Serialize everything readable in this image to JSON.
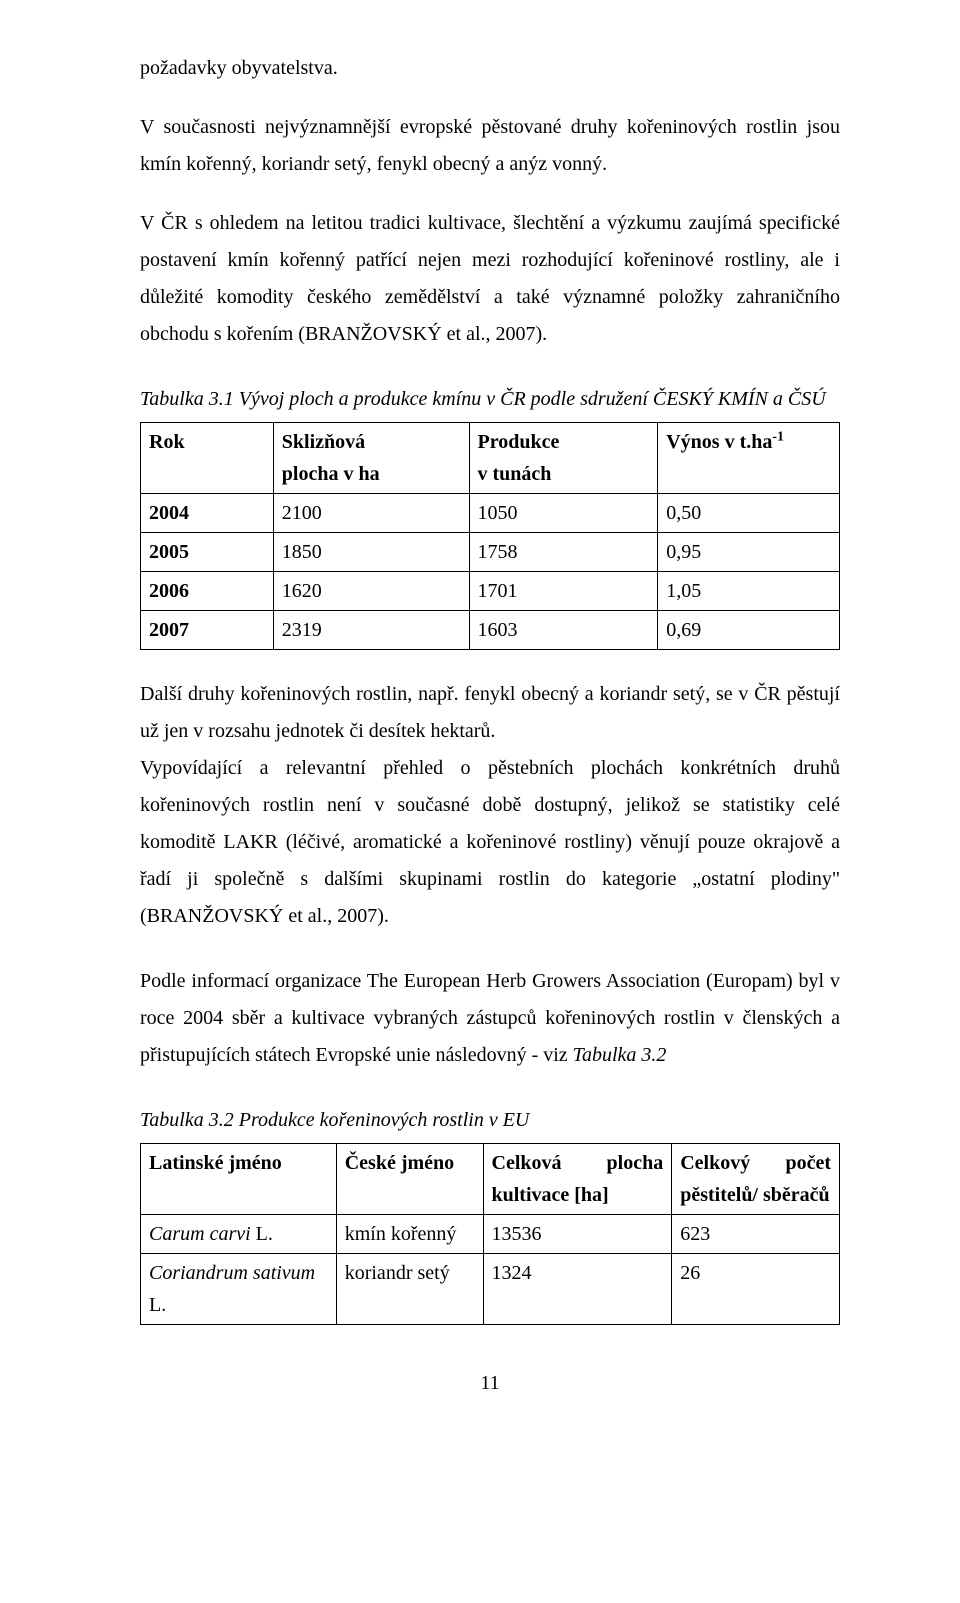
{
  "para1": "požadavky obyvatelstva.",
  "para2": "V současnosti nejvýznamnější evropské pěstované druhy kořeninových rostlin jsou kmín kořenný, koriandr setý, fenykl obecný a anýz vonný.",
  "para3": "V ČR s ohledem na letitou tradici kultivace, šlechtění a výzkumu zaujímá specifické postavení kmín kořenný patřící nejen mezi rozhodující kořeninové rostliny, ale i důležité komodity českého zemědělství a také významné položky zahraničního obchodu s kořením (BRANŽOVSKÝ et al., 2007).",
  "table1": {
    "caption": "Tabulka 3.1 Vývoj ploch a produkce kmínu v ČR podle sdružení ČESKÝ KMÍN a ČSÚ",
    "columns": {
      "c0": "Rok",
      "c1_l1": "Sklizňová",
      "c1_l2": "plocha v ha",
      "c2_l1": "Produkce",
      "c2_l2": "v tunách",
      "c3_pre": "Výnos v t.ha",
      "c3_sup": "-1"
    },
    "rows": [
      {
        "c0": "2004",
        "c1": "2100",
        "c2": "1050",
        "c3": "0,50"
      },
      {
        "c0": "2005",
        "c1": "1850",
        "c2": "1758",
        "c3": "0,95"
      },
      {
        "c0": "2006",
        "c1": "1620",
        "c2": "1701",
        "c3": "1,05"
      },
      {
        "c0": "2007",
        "c1": "2319",
        "c2": "1603",
        "c3": "0,69"
      }
    ]
  },
  "para4": "Další druhy kořeninových rostlin, např. fenykl obecný a koriandr setý, se v ČR pěstují už jen v rozsahu jednotek či desítek hektarů.",
  "para5": "Vypovídající a relevantní přehled o pěstebních plochách konkrétních druhů kořeninových rostlin není v současné době dostupný, jelikož se statistiky celé komoditě LAKR (léčivé, aromatické a kořeninové rostliny) věnují pouze okrajově a řadí ji společně s dalšími skupinami rostlin do kategorie „ostatní plodiny\" (BRANŽOVSKÝ et al., 2007).",
  "para6_pre": "Podle informací organizace The European Herb Growers Association (Europam) byl v roce 2004 sběr a kultivace vybraných zástupců kořeninových rostlin v členských a přistupujících státech Evropské unie následovný - viz ",
  "para6_em": "Tabulka 3.2",
  "table2": {
    "caption": "Tabulka 3.2 Produkce kořeninových rostlin v EU",
    "columns": {
      "c0": "Latinské jméno",
      "c1": "České jméno",
      "c2_l1a": "Celková",
      "c2_l1b": "plocha",
      "c2_l2": "kultivace [ha]",
      "c3_l1a": "Celkový",
      "c3_l1b": "počet",
      "c3_l2": "pěstitelů/ sběračů"
    },
    "rows": [
      {
        "c0_pre": "Carum carvi",
        "c0_suf": " L.",
        "c1": "kmín kořenný",
        "c2": "13536",
        "c3": "623"
      },
      {
        "c0_pre": "Coriandrum sativum",
        "c0_suf": " L.",
        "c1": "koriandr setý",
        "c2": "1324",
        "c3": "26"
      }
    ]
  },
  "pagenum": "11"
}
